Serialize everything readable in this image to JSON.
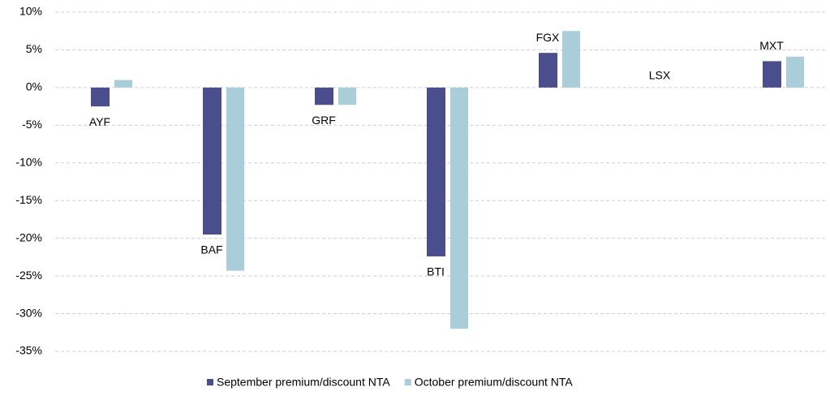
{
  "chart_data": {
    "type": "bar",
    "categories": [
      "AYF",
      "BAF",
      "GRF",
      "BTI",
      "FGX",
      "LSX",
      "MXT"
    ],
    "series": [
      {
        "name": "September premium/discount NTA",
        "color": "#4a4e8c",
        "values": [
          -2.5,
          -19.5,
          -2.3,
          -22.4,
          4.6,
          null,
          3.5
        ]
      },
      {
        "name": "October premium/discount NTA",
        "color": "#a9cdd9",
        "values": [
          1.0,
          -24.3,
          -2.3,
          -32.0,
          7.5,
          null,
          4.1
        ]
      }
    ],
    "ylim": [
      -35,
      10
    ],
    "yticks": [
      {
        "value": 10,
        "label": "10%"
      },
      {
        "value": 5,
        "label": "5%"
      },
      {
        "value": 0,
        "label": "0%"
      },
      {
        "value": -5,
        "label": "-5%"
      },
      {
        "value": -10,
        "label": "-10%"
      },
      {
        "value": -15,
        "label": "-15%"
      },
      {
        "value": -20,
        "label": "-20%"
      },
      {
        "value": -25,
        "label": "-25%"
      },
      {
        "value": -30,
        "label": "-30%"
      },
      {
        "value": -35,
        "label": "-35%"
      }
    ],
    "grid": true
  }
}
